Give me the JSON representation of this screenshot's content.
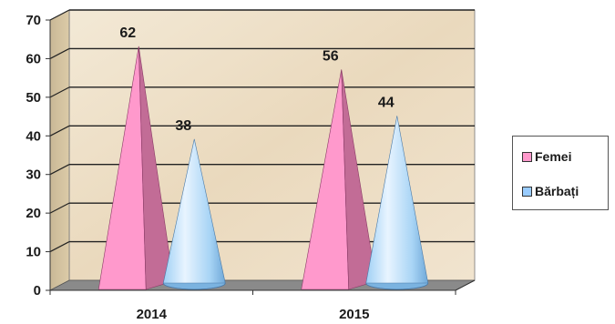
{
  "chart_data": {
    "type": "bar",
    "style": "3d-cone",
    "categories": [
      "2014",
      "2015"
    ],
    "series": [
      {
        "name": "Femei",
        "values": [
          62,
          56
        ],
        "color": "#ff99cc"
      },
      {
        "name": "Bărbați",
        "values": [
          38,
          44
        ],
        "color": "#99ccff"
      }
    ],
    "yticks": [
      "0",
      "10",
      "20",
      "30",
      "40",
      "50",
      "60",
      "70"
    ],
    "ylim": [
      0,
      70
    ],
    "title": "",
    "xlabel": "",
    "ylabel": "",
    "grid": true,
    "legend_position": "right",
    "colors": {
      "wall": "#efe3cc",
      "floor": "#8a8a8a",
      "gridline": "#222222"
    }
  }
}
